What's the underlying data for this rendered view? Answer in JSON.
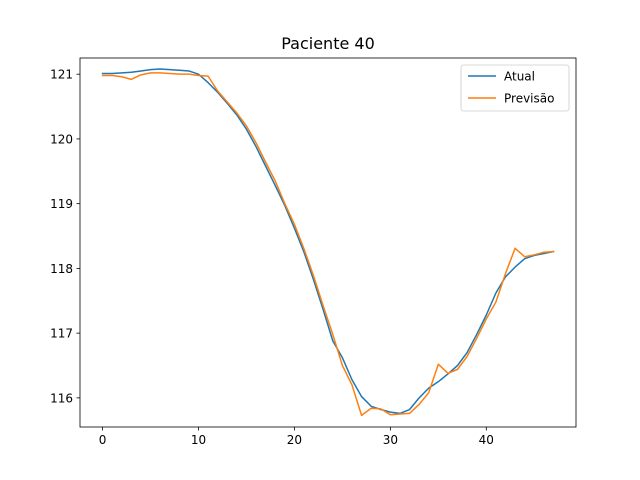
{
  "chart_data": {
    "type": "line",
    "title": "Paciente 40",
    "xlabel": "",
    "ylabel": "",
    "xlim": [
      -2.35,
      49.35
    ],
    "ylim": [
      115.55,
      121.25
    ],
    "xticks": [
      0,
      10,
      20,
      30,
      40
    ],
    "yticks": [
      116,
      117,
      118,
      119,
      120,
      121
    ],
    "grid": false,
    "legend_position": "top-right",
    "x": [
      0,
      1,
      2,
      3,
      4,
      5,
      6,
      7,
      8,
      9,
      10,
      11,
      12,
      13,
      14,
      15,
      16,
      17,
      18,
      19,
      20,
      21,
      22,
      23,
      24,
      25,
      26,
      27,
      28,
      29,
      30,
      31,
      32,
      33,
      34,
      35,
      36,
      37,
      38,
      39,
      40,
      41,
      42,
      43,
      44,
      45,
      46,
      47
    ],
    "series": [
      {
        "name": "Atual",
        "color": "#1f77b4",
        "values": [
          121.01,
          121.01,
          121.02,
          121.03,
          121.05,
          121.07,
          121.08,
          121.07,
          121.06,
          121.05,
          121.0,
          120.87,
          120.72,
          120.55,
          120.37,
          120.15,
          119.88,
          119.58,
          119.28,
          118.97,
          118.62,
          118.25,
          117.82,
          117.36,
          116.88,
          116.62,
          116.28,
          116.02,
          115.87,
          115.82,
          115.78,
          115.76,
          115.82,
          116.0,
          116.15,
          116.25,
          116.37,
          116.5,
          116.7,
          116.98,
          117.28,
          117.62,
          117.87,
          118.02,
          118.15,
          118.2,
          118.23,
          118.26
        ]
      },
      {
        "name": "Previsão",
        "color": "#ff7f0e",
        "values": [
          120.98,
          120.98,
          120.96,
          120.92,
          120.99,
          121.02,
          121.02,
          121.01,
          121.0,
          121.0,
          120.98,
          120.97,
          120.74,
          120.57,
          120.4,
          120.2,
          119.94,
          119.64,
          119.35,
          119.0,
          118.68,
          118.3,
          117.88,
          117.42,
          116.98,
          116.5,
          116.2,
          115.73,
          115.84,
          115.83,
          115.74,
          115.75,
          115.76,
          115.9,
          116.08,
          116.52,
          116.38,
          116.44,
          116.64,
          116.92,
          117.22,
          117.48,
          117.92,
          118.31,
          118.18,
          118.21,
          118.25,
          118.26
        ]
      }
    ]
  }
}
